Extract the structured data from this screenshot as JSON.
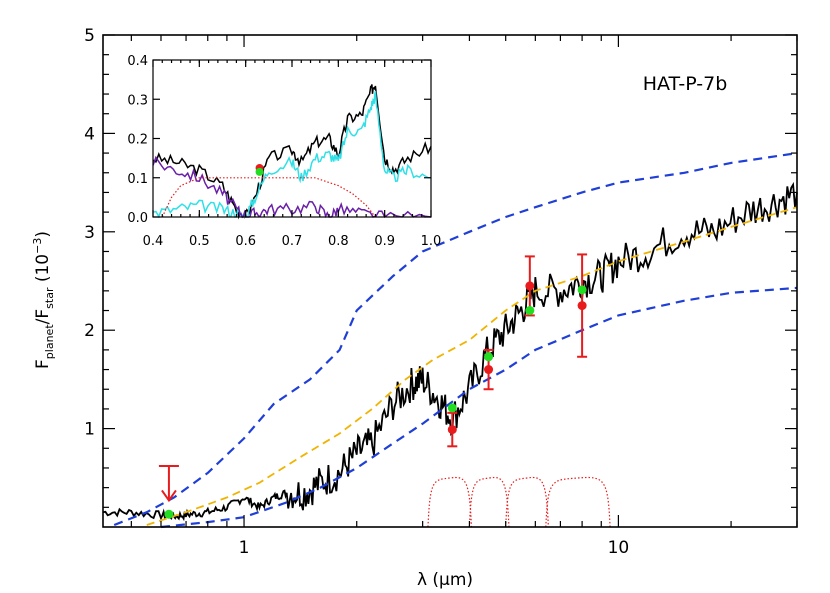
{
  "chart_data": [
    {
      "type": "line",
      "title": "HAT-P-7b",
      "xlabel": "λ (μm)",
      "ylabel": "F_planet/F_star (10^-3)",
      "ylabel_parts": {
        "main": "F",
        "sub1": "planet",
        "slash": "/F",
        "sub2": "star",
        "unit_open": "  (10",
        "sup": "−3",
        "unit_close": ")"
      },
      "xscale": "log",
      "xlim": [
        0.42,
        30
      ],
      "ylim": [
        0,
        5
      ],
      "xticks": [
        1,
        10
      ],
      "xtick_labels": [
        "1",
        "10"
      ],
      "yticks": [
        1,
        2,
        3,
        4,
        5
      ],
      "ytick_labels": [
        "1",
        "2",
        "3",
        "4",
        "5"
      ],
      "colors": {
        "model": "#000000",
        "upper": "#1f3fd6",
        "lower": "#1f3fd6",
        "mid": "#f0b400",
        "obs": "#e81c1c",
        "model_point": "#22dd22",
        "filter": "#e81c1c"
      },
      "series": [
        {
          "style": "black-solid",
          "x": [
            0.42,
            0.5,
            0.6,
            0.66,
            0.72,
            0.8,
            0.9,
            1.0,
            1.1,
            1.2,
            1.3,
            1.45,
            1.6,
            1.8,
            2.0,
            2.2,
            2.5,
            2.8,
            3.0,
            3.3,
            3.6,
            4.0,
            4.5,
            5.0,
            5.5,
            6.0,
            7.0,
            8.0,
            9.0,
            10,
            12,
            15,
            18,
            22,
            26,
            30
          ],
          "y": [
            0.15,
            0.15,
            0.12,
            0.11,
            0.13,
            0.15,
            0.2,
            0.3,
            0.2,
            0.3,
            0.35,
            0.35,
            0.45,
            0.55,
            0.75,
            0.85,
            1.25,
            1.45,
            1.5,
            1.3,
            1.1,
            1.4,
            1.8,
            2.0,
            2.2,
            2.4,
            2.4,
            2.5,
            2.55,
            2.7,
            2.8,
            3.0,
            3.0,
            3.2,
            3.3,
            3.4
          ]
        },
        {
          "style": "blue-dashed-upper",
          "x": [
            0.45,
            0.55,
            0.65,
            0.8,
            1.0,
            1.2,
            1.5,
            1.8,
            2.0,
            2.5,
            3.0,
            4.0,
            5.0,
            6.0,
            8.0,
            10,
            15,
            20,
            30
          ],
          "y": [
            0.02,
            0.15,
            0.3,
            0.55,
            0.9,
            1.25,
            1.5,
            1.8,
            2.2,
            2.55,
            2.8,
            3.0,
            3.15,
            3.25,
            3.4,
            3.5,
            3.6,
            3.7,
            3.8
          ]
        },
        {
          "style": "blue-dashed-lower",
          "x": [
            0.6,
            0.8,
            1.0,
            1.3,
            1.6,
            2.0,
            2.5,
            3.0,
            4.0,
            5.0,
            6.0,
            8.0,
            10,
            15,
            20,
            30
          ],
          "y": [
            0.0,
            0.05,
            0.1,
            0.25,
            0.4,
            0.6,
            0.85,
            1.05,
            1.4,
            1.6,
            1.8,
            2.0,
            2.15,
            2.3,
            2.38,
            2.43
          ]
        },
        {
          "style": "yellow-dashed",
          "x": [
            0.55,
            0.7,
            0.9,
            1.1,
            1.4,
            1.8,
            2.2,
            2.7,
            3.2,
            4.0,
            5.0,
            6.0,
            8.0,
            10,
            15,
            20,
            30
          ],
          "y": [
            0.02,
            0.15,
            0.3,
            0.45,
            0.7,
            0.95,
            1.2,
            1.5,
            1.7,
            1.9,
            2.2,
            2.4,
            2.55,
            2.7,
            2.9,
            3.05,
            3.25
          ]
        }
      ],
      "observations": [
        {
          "x": 0.63,
          "upper_limit": 0.62,
          "arrow_to": 0.27
        },
        {
          "x": 3.6,
          "y": 0.99,
          "err": 0.17
        },
        {
          "x": 4.5,
          "y": 1.6,
          "err": 0.2
        },
        {
          "x": 5.8,
          "y": 2.45,
          "err": 0.3
        },
        {
          "x": 8.0,
          "y": 2.25,
          "err": 0.52
        }
      ],
      "model_points": [
        {
          "x": 0.63,
          "y": 0.13
        },
        {
          "x": 3.6,
          "y": 1.21
        },
        {
          "x": 4.5,
          "y": 1.73
        },
        {
          "x": 5.8,
          "y": 2.2
        },
        {
          "x": 8.0,
          "y": 2.41
        }
      ],
      "filters": [
        {
          "x_start": 3.1,
          "x_end": 4.05
        },
        {
          "x_start": 4.0,
          "x_end": 5.1
        },
        {
          "x_start": 5.0,
          "x_end": 6.5
        },
        {
          "x_start": 6.4,
          "x_end": 9.5
        }
      ]
    },
    {
      "type": "line",
      "title": "",
      "xlim": [
        0.4,
        1.0
      ],
      "ylim": [
        0,
        0.4
      ],
      "xticks": [
        0.4,
        0.5,
        0.6,
        0.7,
        0.8,
        0.9,
        1.0
      ],
      "xtick_labels": [
        "0.4",
        "0.5",
        "0.6",
        "0.7",
        "0.8",
        "0.9",
        "1.0"
      ],
      "yticks": [
        0.0,
        0.1,
        0.2,
        0.3,
        0.4
      ],
      "ytick_labels": [
        "0.0",
        "0.1",
        "0.2",
        "0.3",
        "0.4"
      ],
      "series": [
        {
          "style": "black",
          "x": [
            0.4,
            0.45,
            0.5,
            0.55,
            0.58,
            0.6,
            0.62,
            0.65,
            0.7,
            0.72,
            0.75,
            0.78,
            0.8,
            0.82,
            0.85,
            0.87,
            0.88,
            0.9,
            0.92,
            0.95,
            1.0
          ],
          "y": [
            0.15,
            0.14,
            0.12,
            0.08,
            0.02,
            0.0,
            0.05,
            0.15,
            0.17,
            0.14,
            0.19,
            0.2,
            0.16,
            0.25,
            0.26,
            0.32,
            0.34,
            0.15,
            0.12,
            0.15,
            0.18
          ]
        },
        {
          "style": "cyan",
          "x": [
            0.4,
            0.45,
            0.5,
            0.55,
            0.58,
            0.6,
            0.62,
            0.65,
            0.7,
            0.72,
            0.75,
            0.78,
            0.8,
            0.82,
            0.85,
            0.87,
            0.88,
            0.9,
            0.92,
            0.95,
            1.0
          ],
          "y": [
            0.01,
            0.02,
            0.03,
            0.02,
            0.01,
            0.0,
            0.05,
            0.12,
            0.14,
            0.1,
            0.15,
            0.16,
            0.14,
            0.22,
            0.22,
            0.28,
            0.31,
            0.12,
            0.1,
            0.12,
            0.1
          ]
        },
        {
          "style": "purple",
          "x": [
            0.4,
            0.45,
            0.5,
            0.55,
            0.58,
            0.6,
            0.62,
            0.65,
            0.7,
            0.75,
            0.78,
            0.8,
            0.85,
            0.9,
            1.0
          ],
          "y": [
            0.14,
            0.12,
            0.1,
            0.06,
            0.02,
            0.0,
            0.01,
            0.02,
            0.02,
            0.03,
            0.0,
            0.02,
            0.01,
            0.0,
            0.0
          ]
        },
        {
          "style": "red-dotted",
          "x": [
            0.42,
            0.44,
            0.46,
            0.5,
            0.55,
            0.6,
            0.65,
            0.7,
            0.75,
            0.8,
            0.83,
            0.86,
            0.88
          ],
          "y": [
            0.0,
            0.05,
            0.08,
            0.1,
            0.1,
            0.1,
            0.1,
            0.1,
            0.1,
            0.08,
            0.06,
            0.03,
            0.0
          ]
        }
      ],
      "observations": [
        {
          "x": 0.63,
          "y": 0.125
        }
      ],
      "model_points": [
        {
          "x": 0.63,
          "y": 0.115
        }
      ]
    }
  ]
}
